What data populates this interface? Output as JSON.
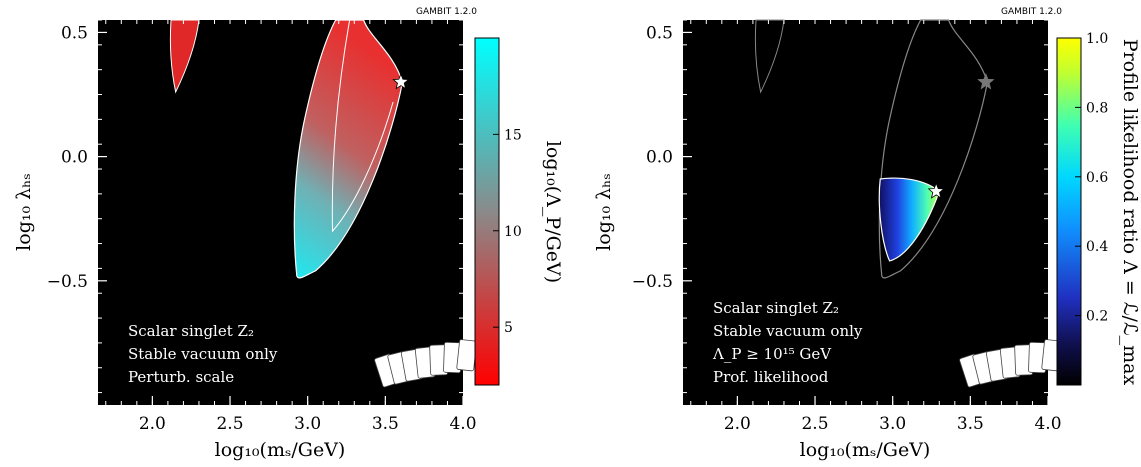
{
  "chart_data": [
    {
      "type": "heatmap",
      "title": "",
      "version_label": "GAMBIT 1.2.0",
      "xlabel": "log₁₀(mₛ/GeV)",
      "ylabel": "log₁₀ λₕₛ",
      "xlim": [
        1.65,
        4.0
      ],
      "ylim": [
        -1.0,
        0.55
      ],
      "xticks": [
        2.0,
        2.5,
        3.0,
        3.5,
        4.0
      ],
      "xtick_labels": [
        "2.0",
        "2.5",
        "3.0",
        "3.5",
        "4.0"
      ],
      "yticks": [
        0.5,
        0.0,
        -0.5
      ],
      "ytick_labels": [
        "0.5",
        "0.0",
        "−0.5"
      ],
      "colorbar": {
        "label": "log₁₀(Λ_P/GeV)",
        "ticks": [
          5,
          10,
          15
        ],
        "tick_labels": [
          "5",
          "10",
          "15"
        ],
        "range": [
          2,
          20
        ],
        "colors": [
          "#ff0000",
          "#888888",
          "#00ffff"
        ]
      },
      "annotations": [
        "Scalar singlet Z₂",
        "Stable vacuum only",
        "Perturb. scale"
      ],
      "best_fit": {
        "x": 3.6,
        "y": 0.3
      },
      "grid": false
    },
    {
      "type": "heatmap",
      "title": "",
      "version_label": "GAMBIT 1.2.0",
      "xlabel": "log₁₀(mₛ/GeV)",
      "ylabel": "log₁₀ λₕₛ",
      "xlim": [
        1.65,
        4.0
      ],
      "ylim": [
        -1.0,
        0.55
      ],
      "xticks": [
        2.0,
        2.5,
        3.0,
        3.5,
        4.0
      ],
      "xtick_labels": [
        "2.0",
        "2.5",
        "3.0",
        "3.5",
        "4.0"
      ],
      "yticks": [
        0.5,
        0.0,
        -0.5
      ],
      "ytick_labels": [
        "0.5",
        "0.0",
        "−0.5"
      ],
      "colorbar": {
        "label": "Profile likelihood ratio Λ = ℒ/ℒ_max",
        "ticks": [
          0.2,
          0.4,
          0.6,
          0.8,
          1.0
        ],
        "tick_labels": [
          "0.2",
          "0.4",
          "0.6",
          "0.8",
          "1.0"
        ],
        "range": [
          0.0,
          1.0
        ],
        "colors": [
          "#000000",
          "#1a1aa0",
          "#2060ff",
          "#00c8ff",
          "#40ffb0",
          "#c8ff30",
          "#ffff00"
        ]
      },
      "annotations": [
        "Scalar singlet Z₂",
        "Stable vacuum only",
        "Λ_P ≥ 10¹⁵ GeV",
        "Prof. likelihood"
      ],
      "best_fit": {
        "x": 3.28,
        "y": -0.14
      },
      "reference_point": {
        "x": 3.6,
        "y": 0.3
      },
      "grid": false
    }
  ]
}
